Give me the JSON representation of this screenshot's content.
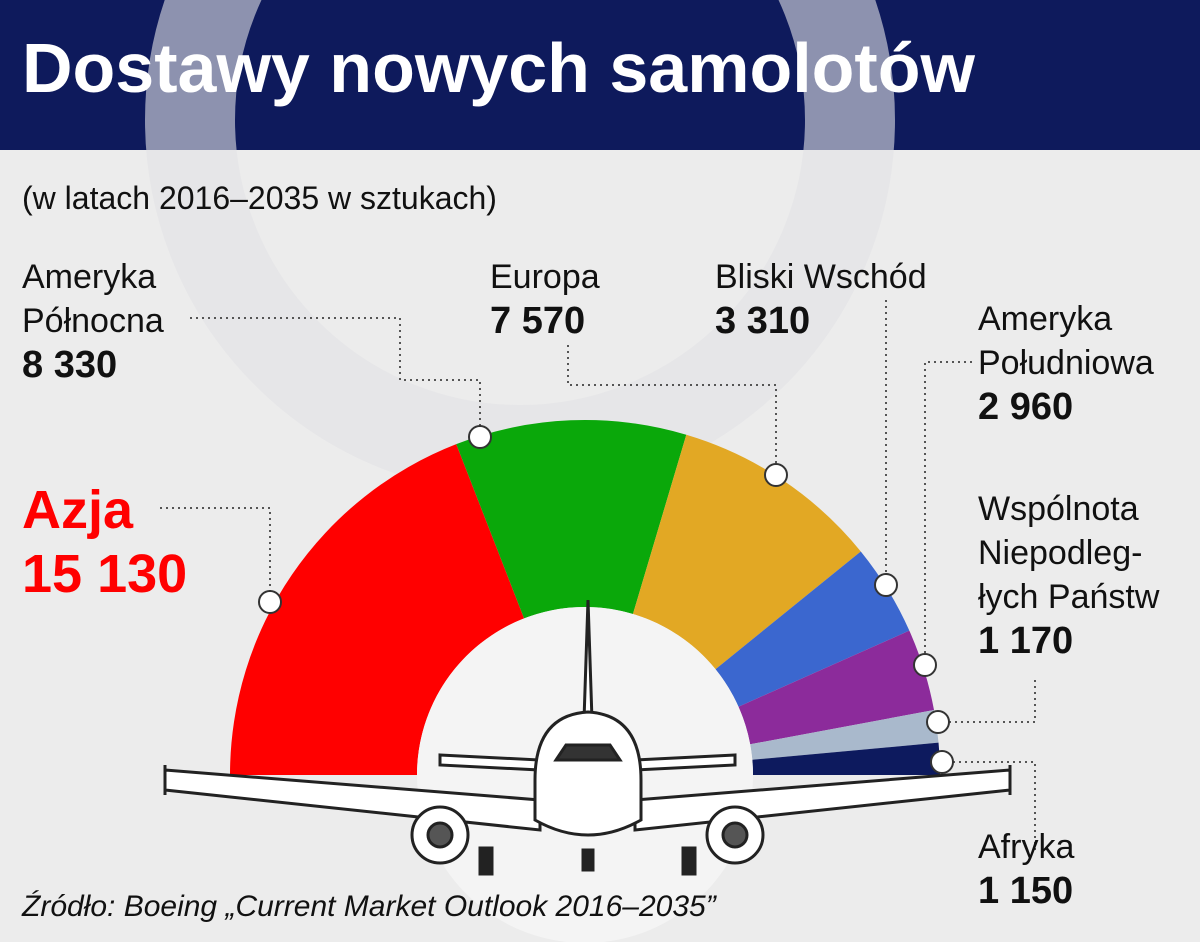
{
  "chart_data": {
    "type": "pie",
    "title": "Dostawy nowych samolotów",
    "subtitle": "(w latach 2016–2035 w sztukach)",
    "source": "Źródło: Boeing „Current Market Outlook 2016–2035”",
    "categories": [
      "Azja",
      "Ameryka\nPółnocna",
      "Europa",
      "Bliski Wschód",
      "Ameryka\nPołudniowa",
      "Wspólnota\nNiepodleg-\nłych Państw",
      "Afryka"
    ],
    "values": [
      15130,
      8330,
      7570,
      3310,
      2960,
      1170,
      1150
    ],
    "value_labels": [
      "15 130",
      "8 330",
      "7 570",
      "3 310",
      "2 960",
      "1 170",
      "1 150"
    ],
    "colors": [
      "#ff0000",
      "#0aa80a",
      "#e2a824",
      "#3b67cf",
      "#8c2b9b",
      "#a9b9cc",
      "#0d1a5e"
    ]
  }
}
